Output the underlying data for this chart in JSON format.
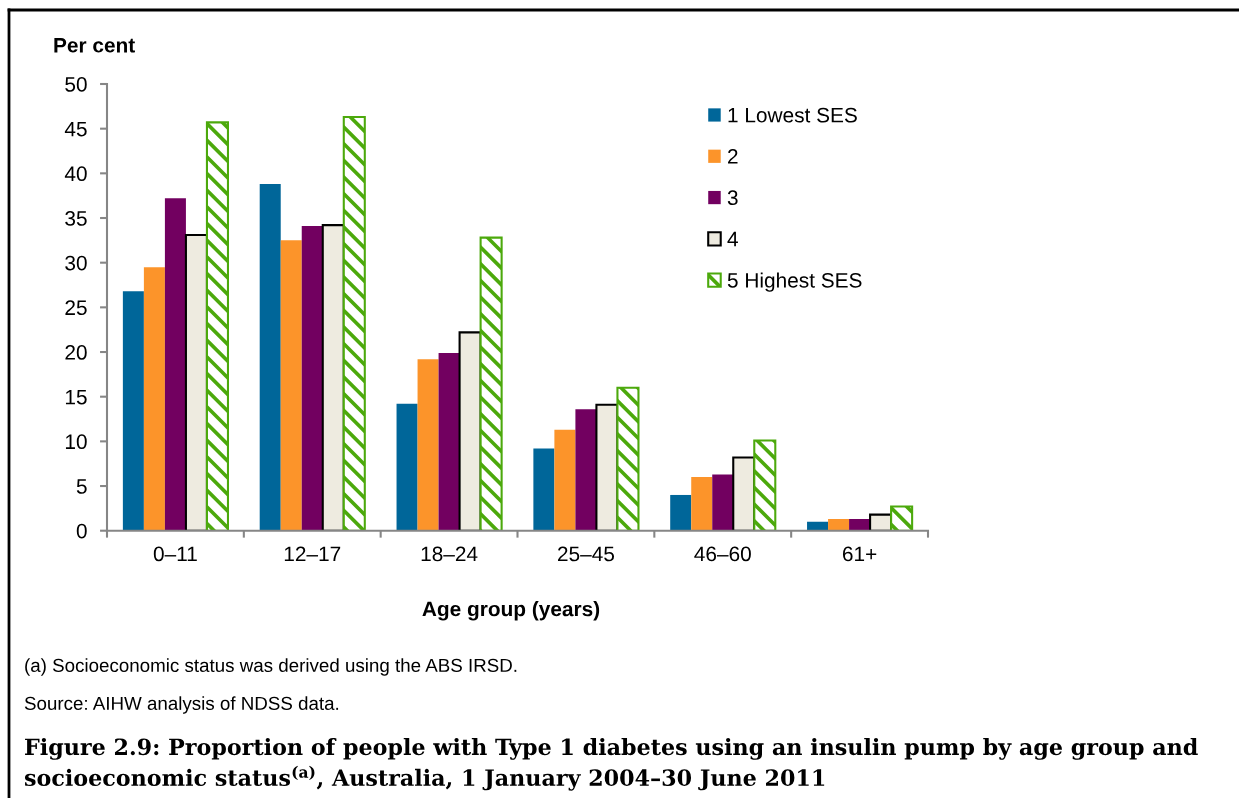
{
  "chart_data": {
    "type": "bar",
    "title": "Figure 2.9: Proportion of people with Type 1 diabetes using an insulin pump by age group and socioeconomic status$^{(a)}$, Australia, 1 January 2004–30 June 2011",
    "ylabel": "Per cent",
    "xlabel": "Age group (years)",
    "annotations": [
      "(a) Socioeconomic status was derived using the ABS IRSD.",
      "Source: AIHW analysis of NDSS data."
    ],
    "categories": [
      "0–11",
      "12–17",
      "18–24",
      "25–45",
      "46–60",
      "61+"
    ],
    "series": [
      {
        "name": "1 Lowest SES",
        "color": "#006699",
        "values": [
          26.8,
          38.8,
          14.2,
          9.2,
          4.0,
          1.0
        ]
      },
      {
        "name": "2",
        "color": "#fc942a",
        "values": [
          29.5,
          32.5,
          19.2,
          11.3,
          6.0,
          1.3
        ]
      },
      {
        "name": "3",
        "color": "#720060",
        "values": [
          37.2,
          34.1,
          19.9,
          13.6,
          6.3,
          1.3
        ]
      },
      {
        "name": "4",
        "color": "#eeebe0",
        "values": [
          33.1,
          34.2,
          22.2,
          14.1,
          8.2,
          1.8
        ]
      },
      {
        "name": "5 Highest SES",
        "color": "#4ca90c",
        "values": [
          45.7,
          46.3,
          32.8,
          16.0,
          10.1,
          2.7
        ]
      }
    ],
    "ylim": [
      0,
      50
    ],
    "yticks": [
      0,
      5,
      10,
      15,
      20,
      25,
      30,
      35,
      40,
      45,
      50
    ],
    "grid": false,
    "legend": "top right"
  }
}
